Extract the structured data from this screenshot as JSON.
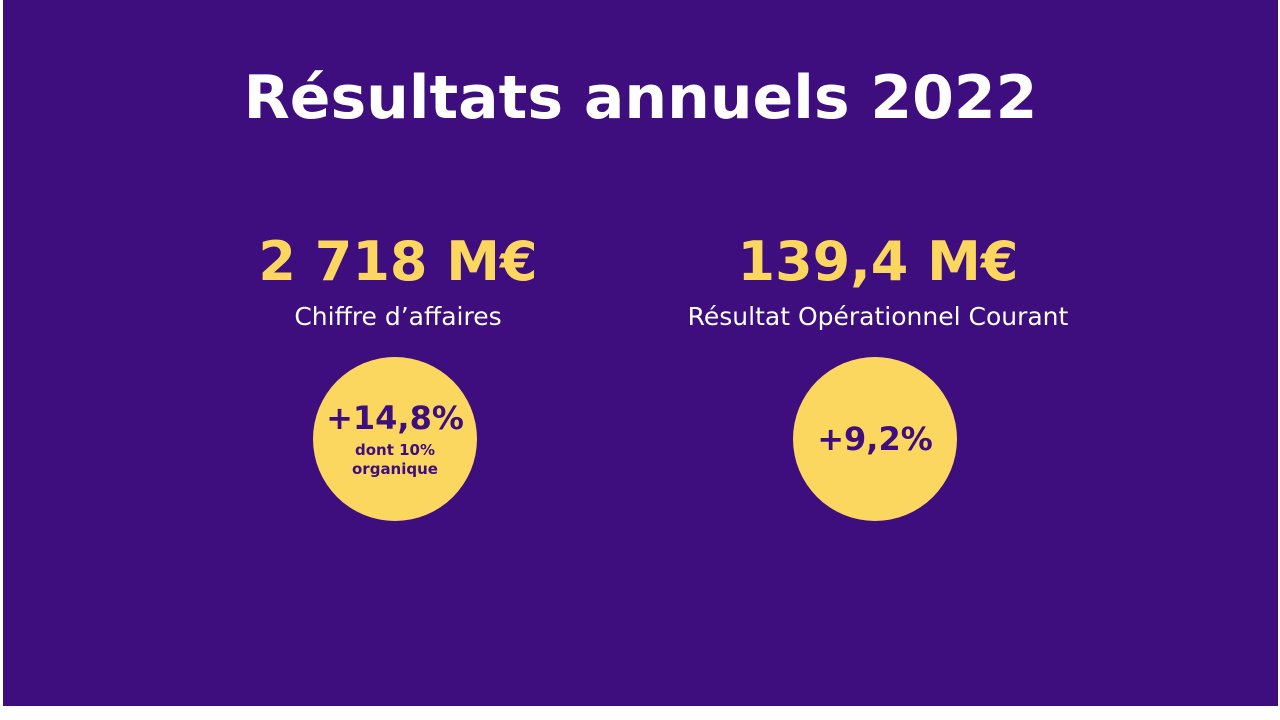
{
  "slide": {
    "background": "#3e0d7e",
    "accent": "#fbd75f",
    "title": "Résultats annuels 2022",
    "kpis": [
      {
        "value": "2 718 M€",
        "label": "Chiffre d’affaires",
        "badge": {
          "value": "+14,8%",
          "note_line1": "dont 10%",
          "note_line2": "organique"
        }
      },
      {
        "value": "139,4 M€",
        "label": "Résultat Opérationnel Courant",
        "badge": {
          "value": "+9,2%"
        }
      }
    ]
  }
}
